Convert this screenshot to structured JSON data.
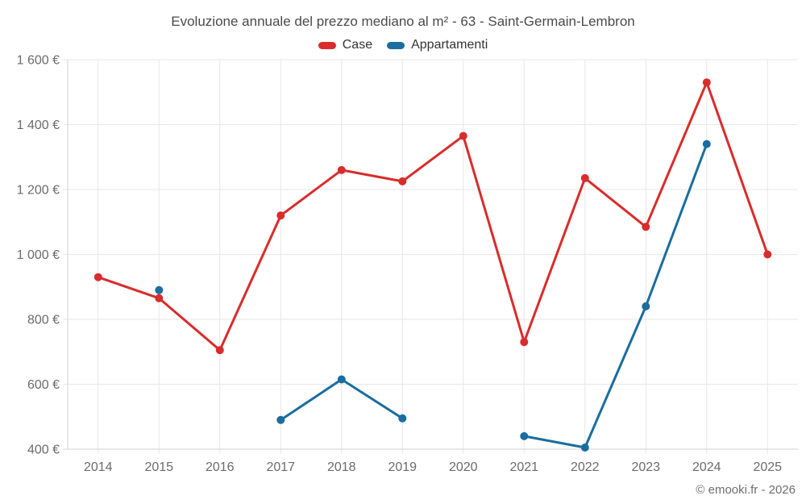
{
  "title": "Evoluzione annuale del prezzo mediano al m² - 63 - Saint-Germain-Lembron",
  "footer": "© emooki.fr - 2026",
  "legend": [
    {
      "label": "Case",
      "color": "#d92c2c"
    },
    {
      "label": "Appartamenti",
      "color": "#1a6d9e"
    }
  ],
  "colors": {
    "grid": "#e7e7e7",
    "axis": "#d3d3d3",
    "tick_label": "#6b6b6b",
    "title_text": "#4a4a4a"
  },
  "chart_data": {
    "type": "line",
    "title": "Evoluzione annuale del prezzo mediano al m² - 63 - Saint-Germain-Lembron",
    "x": [
      2014,
      2015,
      2016,
      2017,
      2018,
      2019,
      2020,
      2021,
      2022,
      2023,
      2024,
      2025
    ],
    "series": [
      {
        "name": "Case",
        "color": "#d92c2c",
        "values": [
          930,
          865,
          705,
          1120,
          1260,
          1225,
          1365,
          730,
          1235,
          1085,
          1530,
          1000
        ]
      },
      {
        "name": "Appartamenti",
        "color": "#1a6d9e",
        "values": [
          null,
          890,
          null,
          490,
          615,
          495,
          null,
          440,
          405,
          840,
          1340,
          null
        ]
      }
    ],
    "ylim": [
      400,
      1600
    ],
    "yticks": [
      400,
      600,
      800,
      1000,
      1200,
      1400,
      1600
    ],
    "ytick_suffix": " €",
    "grid": true,
    "legend_position": "top"
  }
}
